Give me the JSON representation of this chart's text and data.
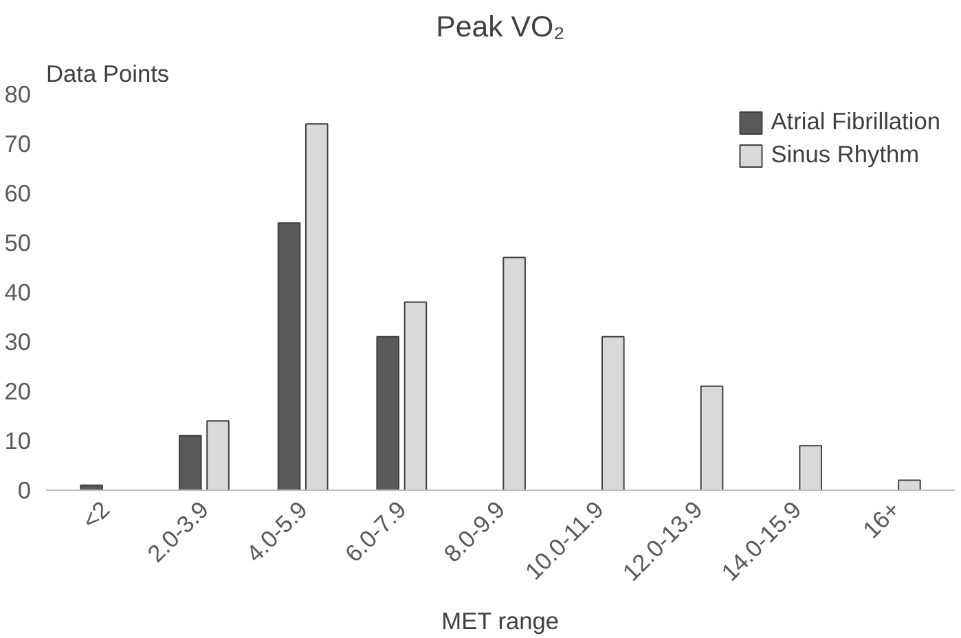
{
  "chart_data": {
    "type": "bar",
    "title": "Peak VO₂",
    "xlabel": "MET range",
    "ylabel": "Data Points",
    "categories": [
      "<2",
      "2.0-3.9",
      "4.0-5.9",
      "6.0-7.9",
      "8.0-9.9",
      "10.0-11.9",
      "12.0-13.9",
      "14.0-15.9",
      "16+"
    ],
    "series": [
      {
        "name": "Atrial Fibrillation",
        "color": "#595959",
        "values": [
          1,
          11,
          54,
          31,
          null,
          null,
          null,
          null,
          null
        ]
      },
      {
        "name": "Sinus Rhythm",
        "color": "#d9d9d9",
        "values": [
          null,
          14,
          74,
          38,
          47,
          31,
          21,
          9,
          2
        ]
      }
    ],
    "ylim": [
      0,
      80
    ],
    "yticks": [
      0,
      10,
      20,
      30,
      40,
      50,
      60,
      70,
      80
    ],
    "grid": false,
    "legend": "top right"
  }
}
